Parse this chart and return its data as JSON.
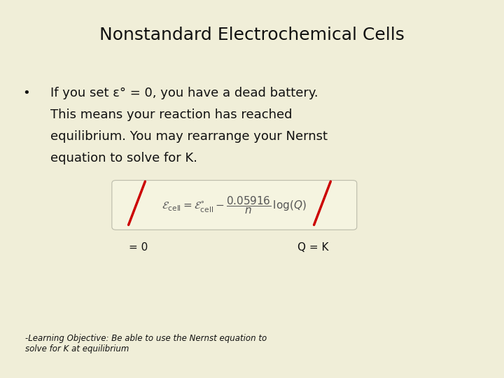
{
  "bg_color": "#f0eed8",
  "title": "Nonstandard Electrochemical Cells",
  "title_fontsize": 18,
  "bullet_fontsize": 13,
  "formula_fontsize": 11,
  "label_fontsize": 11,
  "learning_fontsize": 8.5,
  "bullet_lines": [
    "If you set ε° = 0, you have a dead battery.",
    "This means your reaction has reached",
    "equilibrium. You may rearrange your Nernst",
    "equation to solve for K."
  ],
  "formula_box_facecolor": "#f5f4e0",
  "formula_box_edgecolor": "#bbbbaa",
  "label_zero_text": "= 0",
  "label_qk_text": "Q = K",
  "learning_obj": "-Learning Objective: Be able to use the Nernst equation to\nsolve for K at equilibrium",
  "slash_color": "#cc0000",
  "slash_lw": 2.5,
  "text_color": "#111111"
}
